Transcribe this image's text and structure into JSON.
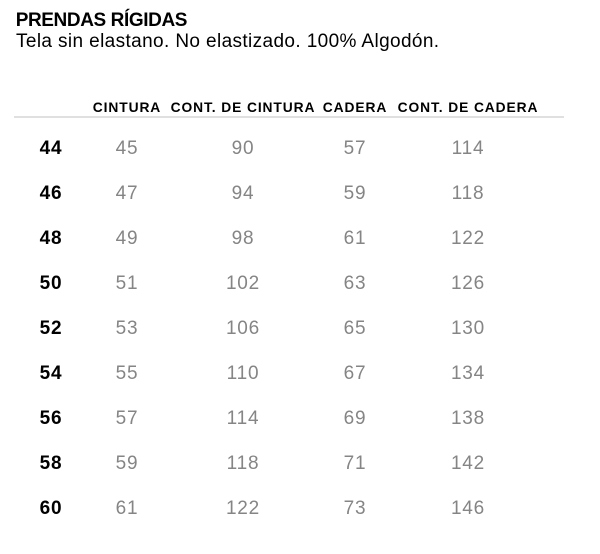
{
  "header": {
    "title": "PRENDAS RÍGIDAS",
    "subtitle": "Tela sin elastano. No elastizado. 100% Algodón."
  },
  "chart_data": {
    "type": "table",
    "title": "PRENDAS RÍGIDAS",
    "subtitle": "Tela sin elastano. No elastizado. 100% Algodón.",
    "columns": [
      "",
      "CINTURA",
      "CONT. DE CINTURA",
      "CADERA",
      "CONT. DE CADERA"
    ],
    "rows": [
      [
        "44",
        "45",
        "90",
        "57",
        "114"
      ],
      [
        "46",
        "47",
        "94",
        "59",
        "118"
      ],
      [
        "48",
        "49",
        "98",
        "61",
        "122"
      ],
      [
        "50",
        "51",
        "102",
        "63",
        "126"
      ],
      [
        "52",
        "53",
        "106",
        "65",
        "130"
      ],
      [
        "54",
        "55",
        "110",
        "67",
        "134"
      ],
      [
        "56",
        "57",
        "114",
        "69",
        "138"
      ],
      [
        "58",
        "59",
        "118",
        "71",
        "142"
      ],
      [
        "60",
        "61",
        "122",
        "73",
        "146"
      ]
    ]
  },
  "colors": {
    "text": "#000000",
    "muted_value": "#858585",
    "rule": "#e0e0e0",
    "background": "#ffffff"
  }
}
